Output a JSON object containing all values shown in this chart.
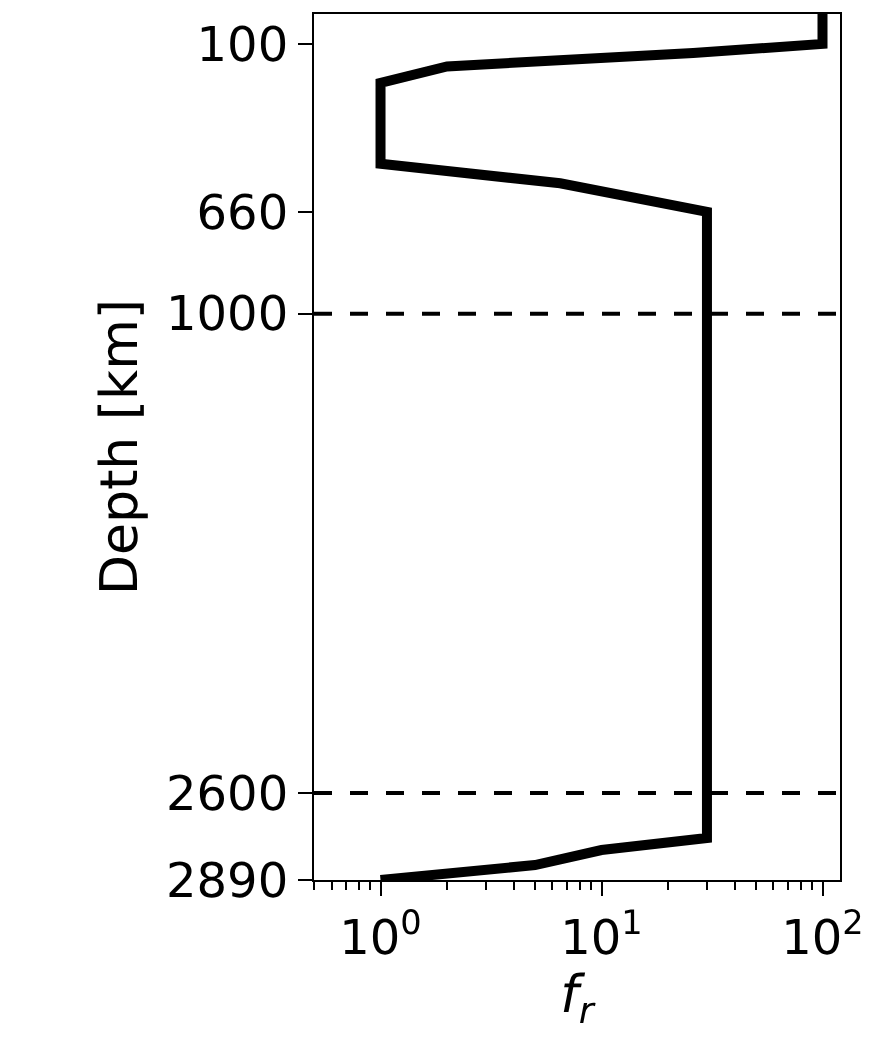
{
  "chart_data": {
    "type": "line",
    "xlabel": "f$_{r}$",
    "ylabel": "Depth [km]",
    "log": "x",
    "xlim": [
      0.5,
      120
    ],
    "xticks": [
      {
        "value": 1,
        "label": "10$^{0}$"
      },
      {
        "value": 10,
        "label": "10$^{1}$"
      },
      {
        "value": 100,
        "label": "10$^{2}$"
      }
    ],
    "ylim": [
      2890,
      0
    ],
    "yticks": [
      100,
      660,
      1000,
      2600,
      2890
    ],
    "series": [
      {
        "color": "#000000",
        "x": [
          100,
          100,
          26,
          2,
          1,
          1,
          6.5,
          30,
          30,
          10,
          5,
          1
        ],
        "values": [
          0,
          100,
          130,
          175,
          230,
          500,
          565,
          660,
          2750,
          2790,
          2840,
          2890
        ]
      }
    ],
    "ref_lines": [
      {
        "axis": "y",
        "value": 1000,
        "line_style": "dashed",
        "color": "#000000"
      },
      {
        "axis": "y",
        "value": 2600,
        "line_style": "dashed",
        "color": "#000000"
      }
    ],
    "marker": "none",
    "line_style": "solid"
  }
}
